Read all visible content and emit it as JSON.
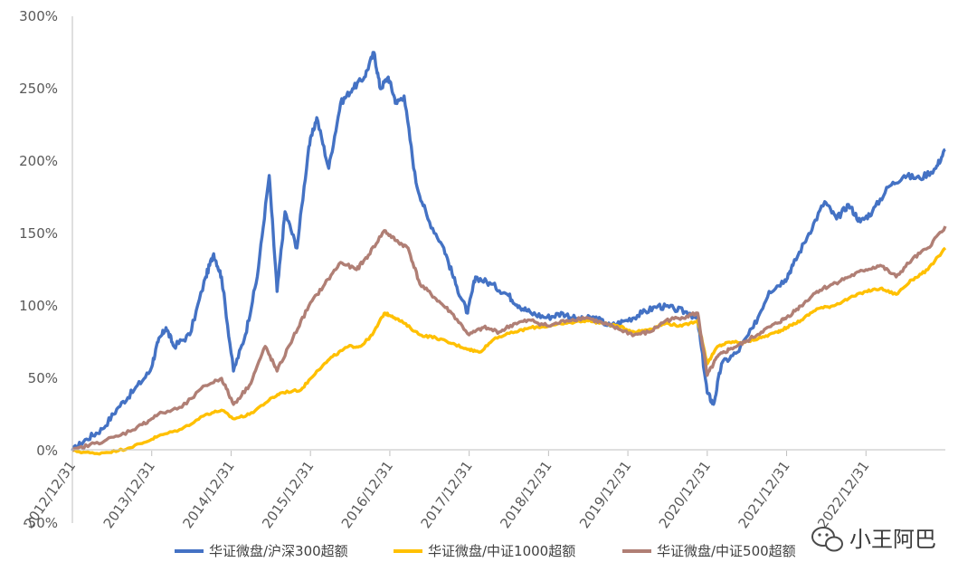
{
  "chart_data": {
    "type": "line",
    "title": "",
    "xlabel": "",
    "ylabel": "",
    "ylim": [
      -50,
      300
    ],
    "y_ticks": [
      "300%",
      "250%",
      "200%",
      "150%",
      "100%",
      "50%",
      "0%",
      "-50%"
    ],
    "y_tick_values": [
      300,
      250,
      200,
      150,
      100,
      50,
      0,
      -50
    ],
    "x_range": [
      2012.92,
      2023.92
    ],
    "x_ticks": [
      "2012/12/31",
      "2013/12/31",
      "2014/12/31",
      "2015/12/31",
      "2016/12/31",
      "2017/12/31",
      "2018/12/31",
      "2019/12/31",
      "2020/12/31",
      "2021/12/31",
      "2022/12/31"
    ],
    "x_tick_values": [
      2012.92,
      2013.92,
      2014.92,
      2015.92,
      2016.92,
      2017.92,
      2018.92,
      2019.92,
      2020.92,
      2021.92,
      2022.92
    ],
    "legend_position": "bottom",
    "series": [
      {
        "name": "华证微盘/沪深300超额",
        "color": "#4472C4",
        "points": [
          [
            2012.92,
            0
          ],
          [
            2013.1,
            8
          ],
          [
            2013.3,
            15
          ],
          [
            2013.5,
            30
          ],
          [
            2013.7,
            42
          ],
          [
            2013.9,
            55
          ],
          [
            2014.0,
            75
          ],
          [
            2014.1,
            85
          ],
          [
            2014.2,
            72
          ],
          [
            2014.4,
            80
          ],
          [
            2014.6,
            120
          ],
          [
            2014.7,
            136
          ],
          [
            2014.8,
            120
          ],
          [
            2014.95,
            55
          ],
          [
            2015.1,
            80
          ],
          [
            2015.25,
            120
          ],
          [
            2015.4,
            190
          ],
          [
            2015.5,
            110
          ],
          [
            2015.6,
            165
          ],
          [
            2015.75,
            140
          ],
          [
            2015.9,
            210
          ],
          [
            2016.0,
            230
          ],
          [
            2016.15,
            195
          ],
          [
            2016.3,
            240
          ],
          [
            2016.45,
            250
          ],
          [
            2016.6,
            258
          ],
          [
            2016.72,
            275
          ],
          [
            2016.8,
            250
          ],
          [
            2016.9,
            258
          ],
          [
            2017.0,
            240
          ],
          [
            2017.1,
            245
          ],
          [
            2017.25,
            185
          ],
          [
            2017.4,
            160
          ],
          [
            2017.6,
            140
          ],
          [
            2017.75,
            115
          ],
          [
            2017.9,
            95
          ],
          [
            2018.0,
            120
          ],
          [
            2018.2,
            115
          ],
          [
            2018.4,
            108
          ],
          [
            2018.55,
            100
          ],
          [
            2018.7,
            95
          ],
          [
            2018.9,
            92
          ],
          [
            2019.1,
            95
          ],
          [
            2019.3,
            90
          ],
          [
            2019.5,
            92
          ],
          [
            2019.7,
            86
          ],
          [
            2019.9,
            90
          ],
          [
            2020.1,
            95
          ],
          [
            2020.3,
            100
          ],
          [
            2020.5,
            98
          ],
          [
            2020.7,
            95
          ],
          [
            2020.8,
            90
          ],
          [
            2020.92,
            40
          ],
          [
            2021.0,
            32
          ],
          [
            2021.1,
            60
          ],
          [
            2021.3,
            68
          ],
          [
            2021.5,
            85
          ],
          [
            2021.7,
            110
          ],
          [
            2021.9,
            118
          ],
          [
            2022.0,
            128
          ],
          [
            2022.2,
            150
          ],
          [
            2022.4,
            172
          ],
          [
            2022.55,
            160
          ],
          [
            2022.7,
            170
          ],
          [
            2022.85,
            158
          ],
          [
            2023.0,
            165
          ],
          [
            2023.2,
            182
          ],
          [
            2023.4,
            190
          ],
          [
            2023.6,
            188
          ],
          [
            2023.8,
            195
          ],
          [
            2023.92,
            208
          ]
        ]
      },
      {
        "name": "华证微盘/中证1000超额",
        "color": "#FFC000",
        "points": [
          [
            2012.92,
            0
          ],
          [
            2013.2,
            -2
          ],
          [
            2013.5,
            0
          ],
          [
            2013.8,
            5
          ],
          [
            2014.0,
            10
          ],
          [
            2014.3,
            15
          ],
          [
            2014.6,
            25
          ],
          [
            2014.8,
            28
          ],
          [
            2014.95,
            22
          ],
          [
            2015.15,
            25
          ],
          [
            2015.4,
            35
          ],
          [
            2015.55,
            40
          ],
          [
            2015.8,
            42
          ],
          [
            2016.0,
            55
          ],
          [
            2016.2,
            65
          ],
          [
            2016.4,
            72
          ],
          [
            2016.55,
            72
          ],
          [
            2016.7,
            80
          ],
          [
            2016.85,
            95
          ],
          [
            2016.95,
            93
          ],
          [
            2017.1,
            88
          ],
          [
            2017.3,
            80
          ],
          [
            2017.5,
            78
          ],
          [
            2017.7,
            74
          ],
          [
            2017.92,
            70
          ],
          [
            2018.05,
            68
          ],
          [
            2018.25,
            78
          ],
          [
            2018.5,
            82
          ],
          [
            2018.7,
            85
          ],
          [
            2018.92,
            86
          ],
          [
            2019.15,
            88
          ],
          [
            2019.4,
            90
          ],
          [
            2019.6,
            88
          ],
          [
            2019.8,
            86
          ],
          [
            2020.0,
            82
          ],
          [
            2020.2,
            84
          ],
          [
            2020.4,
            88
          ],
          [
            2020.6,
            86
          ],
          [
            2020.8,
            90
          ],
          [
            2020.92,
            60
          ],
          [
            2021.05,
            72
          ],
          [
            2021.2,
            75
          ],
          [
            2021.4,
            75
          ],
          [
            2021.6,
            78
          ],
          [
            2021.8,
            82
          ],
          [
            2021.92,
            85
          ],
          [
            2022.1,
            90
          ],
          [
            2022.3,
            98
          ],
          [
            2022.5,
            100
          ],
          [
            2022.7,
            105
          ],
          [
            2022.92,
            110
          ],
          [
            2023.1,
            112
          ],
          [
            2023.3,
            108
          ],
          [
            2023.5,
            118
          ],
          [
            2023.7,
            125
          ],
          [
            2023.92,
            140
          ]
        ]
      },
      {
        "name": "华证微盘/中证500超额",
        "color": "#B07F75",
        "points": [
          [
            2012.92,
            0
          ],
          [
            2013.2,
            5
          ],
          [
            2013.5,
            10
          ],
          [
            2013.8,
            18
          ],
          [
            2014.0,
            25
          ],
          [
            2014.3,
            30
          ],
          [
            2014.6,
            45
          ],
          [
            2014.8,
            50
          ],
          [
            2014.95,
            32
          ],
          [
            2015.15,
            45
          ],
          [
            2015.35,
            72
          ],
          [
            2015.5,
            55
          ],
          [
            2015.7,
            78
          ],
          [
            2015.9,
            100
          ],
          [
            2016.1,
            115
          ],
          [
            2016.3,
            130
          ],
          [
            2016.5,
            125
          ],
          [
            2016.65,
            135
          ],
          [
            2016.85,
            152
          ],
          [
            2017.0,
            145
          ],
          [
            2017.15,
            140
          ],
          [
            2017.3,
            115
          ],
          [
            2017.5,
            105
          ],
          [
            2017.7,
            95
          ],
          [
            2017.92,
            80
          ],
          [
            2018.1,
            85
          ],
          [
            2018.3,
            82
          ],
          [
            2018.5,
            88
          ],
          [
            2018.7,
            90
          ],
          [
            2018.92,
            86
          ],
          [
            2019.15,
            90
          ],
          [
            2019.4,
            92
          ],
          [
            2019.6,
            88
          ],
          [
            2019.8,
            84
          ],
          [
            2020.0,
            80
          ],
          [
            2020.2,
            82
          ],
          [
            2020.4,
            90
          ],
          [
            2020.6,
            92
          ],
          [
            2020.8,
            95
          ],
          [
            2020.92,
            52
          ],
          [
            2021.05,
            65
          ],
          [
            2021.2,
            70
          ],
          [
            2021.4,
            75
          ],
          [
            2021.6,
            82
          ],
          [
            2021.8,
            88
          ],
          [
            2021.92,
            92
          ],
          [
            2022.1,
            100
          ],
          [
            2022.3,
            110
          ],
          [
            2022.5,
            115
          ],
          [
            2022.7,
            120
          ],
          [
            2022.92,
            125
          ],
          [
            2023.1,
            128
          ],
          [
            2023.3,
            120
          ],
          [
            2023.5,
            132
          ],
          [
            2023.7,
            140
          ],
          [
            2023.92,
            155
          ]
        ]
      }
    ]
  },
  "watermark": {
    "text": "小王阿巴",
    "icon": "wechat-icon"
  }
}
